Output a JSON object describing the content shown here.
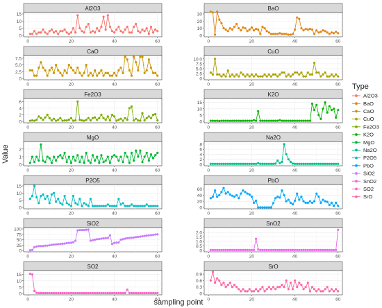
{
  "chart_data": {
    "type": "line",
    "xlabel": "sampling point",
    "ylabel": "Value",
    "legend": {
      "title": "Type",
      "position": "right"
    },
    "grid": true,
    "x": [
      1,
      2,
      3,
      4,
      5,
      6,
      7,
      8,
      9,
      10,
      11,
      12,
      13,
      14,
      15,
      16,
      17,
      18,
      19,
      20,
      21,
      22,
      23,
      24,
      25,
      26,
      27,
      28,
      29,
      30,
      31,
      32,
      33,
      34,
      35,
      36,
      37,
      38,
      39,
      40,
      41,
      42,
      43,
      44,
      45,
      46,
      47,
      48,
      49,
      50,
      51,
      52,
      53,
      54,
      55,
      56,
      57,
      58,
      59,
      60
    ],
    "xlim": [
      -2,
      62
    ],
    "xticks": [
      0,
      20,
      40,
      60
    ],
    "panels": [
      {
        "name": "Al2O3",
        "color": "#F8766D",
        "ylim": [
          0,
          15
        ],
        "yticks": [
          0,
          5,
          10,
          15
        ],
        "ytick_labels": [
          "0",
          "5",
          "10",
          "15"
        ],
        "values": [
          1,
          1,
          3,
          1,
          2,
          2,
          4,
          2,
          1,
          3,
          4,
          2,
          3,
          1,
          3,
          3,
          4,
          2,
          1,
          2,
          5,
          2,
          14,
          5,
          3,
          2,
          6,
          8,
          2,
          3,
          2,
          5,
          3,
          6,
          13,
          4,
          14,
          6,
          3,
          2,
          4,
          6,
          3,
          2,
          4,
          6,
          2,
          2,
          6,
          8,
          3,
          2,
          4,
          3,
          5,
          1,
          6,
          2,
          4,
          3
        ]
      },
      {
        "name": "BaO",
        "color": "#E68613",
        "ylim": [
          0,
          30
        ],
        "yticks": [
          0,
          10,
          20,
          30
        ],
        "ytick_labels": [
          "0",
          "10",
          "20",
          "30"
        ],
        "values": [
          33,
          32,
          1,
          33,
          22,
          17,
          10,
          8,
          6,
          10,
          8,
          12,
          16,
          10,
          7,
          11,
          10,
          6,
          8,
          11,
          7,
          9,
          8,
          2,
          12,
          10,
          6,
          4,
          2,
          2,
          2,
          2,
          3,
          2,
          2,
          2,
          1,
          1,
          2,
          8,
          25,
          23,
          10,
          7,
          9,
          8,
          9,
          8,
          2,
          7,
          4,
          5,
          7,
          6,
          4,
          2,
          4,
          3,
          5,
          3
        ]
      },
      {
        "name": "CaO",
        "color": "#CD9600",
        "ylim": [
          0,
          8
        ],
        "yticks": [
          0,
          2.5,
          5,
          7.5
        ],
        "ytick_labels": [
          "0",
          "2.5",
          "5.0",
          "7.5"
        ],
        "values": [
          3,
          3,
          1,
          1,
          4,
          6,
          4,
          3,
          1,
          3,
          4,
          2,
          5,
          3,
          2,
          1,
          3,
          2,
          5,
          4,
          3,
          2,
          4,
          2,
          1,
          2,
          5,
          1,
          2,
          1,
          3,
          1,
          2,
          3,
          1,
          2,
          2,
          1,
          1,
          2,
          1,
          3,
          4,
          2,
          8,
          7,
          3,
          1,
          8,
          6,
          3,
          8,
          8,
          2,
          3,
          7,
          4,
          2,
          2,
          1
        ]
      },
      {
        "name": "CuO",
        "color": "#ABA300",
        "ylim": [
          0,
          11
        ],
        "yticks": [
          0,
          2.5,
          5,
          7.5,
          10
        ],
        "ytick_labels": [
          "0",
          "2.5",
          "5.0",
          "7.5",
          "10.0"
        ],
        "values": [
          3,
          2,
          10,
          2,
          2,
          1,
          2,
          1,
          4,
          1,
          2,
          1,
          2,
          1,
          3,
          2,
          1,
          2,
          1,
          2,
          1,
          2,
          1,
          1,
          1,
          2,
          1,
          2,
          1,
          2,
          2,
          1,
          2,
          3,
          3,
          1,
          2,
          1,
          2,
          3,
          3,
          2,
          3,
          1,
          1,
          3,
          2,
          2,
          8,
          3,
          3,
          1,
          2,
          3,
          1,
          1,
          2,
          1,
          2,
          1
        ]
      },
      {
        "name": "Fe2O3",
        "color": "#7CAE00",
        "ylim": [
          0,
          6.5
        ],
        "yticks": [
          0,
          2,
          4,
          6
        ],
        "ytick_labels": [
          "0",
          "2",
          "4",
          "6"
        ],
        "values": [
          0.2,
          0.3,
          0.2,
          0.5,
          1.5,
          1,
          0.5,
          1.2,
          2,
          1,
          0.3,
          0.8,
          0.2,
          0.5,
          1,
          0.2,
          0.3,
          0.3,
          0.5,
          1,
          0.2,
          0.3,
          6,
          0.5,
          0.3,
          0.2,
          0.5,
          1,
          0.3,
          1,
          1.2,
          0.5,
          1,
          2,
          1,
          0.5,
          1.5,
          0.3,
          2,
          1.5,
          0.2,
          0.5,
          0.8,
          0.2,
          1,
          0.5,
          4,
          4.5,
          0.3,
          0.8,
          0.3,
          0.2,
          2.5,
          0.3,
          1,
          1.5,
          1,
          2,
          2.2,
          0.3
        ]
      },
      {
        "name": "K2O",
        "color": "#0CB702",
        "ylim": [
          0,
          17
        ],
        "yticks": [
          0,
          5,
          10,
          15
        ],
        "ytick_labels": [
          "0",
          "5",
          "10",
          "15"
        ],
        "values": [
          0.5,
          0.5,
          0.4,
          0.5,
          0.3,
          0.5,
          0.5,
          0.5,
          0.5,
          0.4,
          0.5,
          0.5,
          0.5,
          0.5,
          0.4,
          0.5,
          0.5,
          0.5,
          0.5,
          0.5,
          1,
          0.5,
          8,
          0.5,
          0.5,
          0.5,
          0.5,
          0.5,
          0.5,
          0.5,
          0.5,
          0.5,
          1,
          0.5,
          0.5,
          0.5,
          0.5,
          0.5,
          0.5,
          0.5,
          0.5,
          0.5,
          0.5,
          0.5,
          0.5,
          0.5,
          0.5,
          14,
          9,
          13,
          5,
          2,
          10,
          15,
          7,
          12,
          9,
          10,
          3,
          9
        ]
      },
      {
        "name": "MgO",
        "color": "#00BA38",
        "ylim": [
          0,
          2.8
        ],
        "yticks": [
          0,
          1,
          2
        ],
        "ytick_labels": [
          "0",
          "1",
          "2"
        ],
        "values": [
          0.2,
          1,
          0.3,
          1,
          0.5,
          2.6,
          0.5,
          0.3,
          1,
          0.8,
          0.2,
          1,
          0.5,
          1,
          1.2,
          0.8,
          1.5,
          0.3,
          1,
          0.2,
          1,
          0.5,
          1.2,
          0.3,
          1,
          0.2,
          1.5,
          0.5,
          0.2,
          1.2,
          0.5,
          1,
          0.2,
          1.2,
          0.3,
          0.5,
          1,
          0.2,
          1,
          1.2,
          1,
          0.5,
          1,
          0.3,
          1.5,
          1,
          0.2,
          1.5,
          0.5,
          1.8,
          1,
          1.8,
          0.3,
          1,
          1.5,
          0.5,
          1.3,
          0.8,
          1.2,
          1.5
        ]
      },
      {
        "name": "Na2O",
        "color": "#00C08B",
        "ylim": [
          0,
          8.5
        ],
        "yticks": [
          0,
          2,
          4,
          6,
          8
        ],
        "ytick_labels": [
          "0",
          "2",
          "4",
          "6",
          "8"
        ],
        "values": [
          0.2,
          0.2,
          0.2,
          0.2,
          0.2,
          0.2,
          0.2,
          0.2,
          0.2,
          0.2,
          0.2,
          0.2,
          0.2,
          0.2,
          0.2,
          0.2,
          0.2,
          0.2,
          0.2,
          0.2,
          0.2,
          0.2,
          0.5,
          0.2,
          0.2,
          0.2,
          0.2,
          0.2,
          0.2,
          0.2,
          0.3,
          1.5,
          0.5,
          1,
          8,
          4,
          2,
          1,
          0.3,
          0.2,
          0.2,
          0.2,
          0.2,
          0.2,
          0.2,
          0.2,
          0.2,
          0.2,
          0.2,
          0.2,
          0.2,
          0.2,
          0.2,
          0.2,
          0.2,
          0.2,
          0.2,
          0.2,
          0.2,
          0.2
        ]
      },
      {
        "name": "P2O5",
        "color": "#00BFC4",
        "ylim": [
          0,
          15
        ],
        "yticks": [
          0,
          5,
          10,
          15
        ],
        "ytick_labels": [
          "0",
          "5",
          "10",
          "15"
        ],
        "values": [
          6,
          8,
          15,
          7,
          3,
          8,
          9,
          6,
          8,
          3,
          9,
          10,
          4,
          6,
          3,
          2,
          8,
          3,
          2,
          1,
          8,
          3,
          2,
          6,
          1,
          3,
          2,
          1,
          6,
          1,
          1,
          1,
          1,
          1,
          1,
          1,
          2,
          1,
          1,
          1,
          1,
          6,
          2,
          3,
          1,
          1,
          1,
          2,
          1,
          1,
          1,
          1,
          1,
          1,
          2,
          1,
          1,
          1,
          1,
          1
        ]
      },
      {
        "name": "PbO",
        "color": "#00A9FF",
        "ylim": [
          0,
          70
        ],
        "yticks": [
          0,
          20,
          40,
          60
        ],
        "ytick_labels": [
          "0",
          "20",
          "40",
          "60"
        ],
        "values": [
          30,
          35,
          55,
          35,
          40,
          50,
          63,
          45,
          50,
          42,
          38,
          35,
          40,
          30,
          45,
          55,
          50,
          45,
          42,
          35,
          15,
          22,
          0,
          0,
          0,
          0,
          0,
          0,
          0,
          14,
          30,
          35,
          32,
          55,
          40,
          20,
          25,
          15,
          10,
          22,
          45,
          25,
          35,
          20,
          15,
          15,
          20,
          15,
          20,
          45,
          35,
          15,
          25,
          20,
          18,
          8,
          15,
          5,
          15,
          5
        ]
      },
      {
        "name": "SiO2",
        "color": "#C77CFF",
        "ylim": [
          0,
          100
        ],
        "yticks": [
          0,
          25,
          50,
          75,
          100
        ],
        "ytick_labels": [
          "0",
          "25",
          "50",
          "75",
          "100"
        ],
        "values": [
          1,
          2,
          15,
          18,
          20,
          20,
          20,
          22,
          22,
          24,
          26,
          27,
          28,
          29,
          30,
          31,
          32,
          34,
          35,
          36,
          38,
          45,
          93,
          95,
          95,
          95,
          96,
          97,
          45,
          48,
          50,
          52,
          53,
          55,
          56,
          57,
          58,
          70,
          30,
          35,
          36,
          37,
          50,
          52,
          55,
          57,
          58,
          59,
          60,
          62,
          63,
          64,
          66,
          67,
          69,
          70,
          71,
          72,
          74,
          75
        ]
      },
      {
        "name": "SnO2",
        "color": "#ED68ED",
        "ylim": [
          0,
          2.4
        ],
        "yticks": [
          0,
          0.5,
          1,
          1.5,
          2
        ],
        "ytick_labels": [
          "0",
          "0.5",
          "1.0",
          "1.5",
          "2.0"
        ],
        "values": [
          0.05,
          0.05,
          0.05,
          0.05,
          0.05,
          0.05,
          0.05,
          0.05,
          0.05,
          0.05,
          0.05,
          0.05,
          0.05,
          0.05,
          0.05,
          0.05,
          0.05,
          0.05,
          0.05,
          0.05,
          0.05,
          1.3,
          0.1,
          0.05,
          0.05,
          0.05,
          0.05,
          0.05,
          0.05,
          0.05,
          0.05,
          0.05,
          0.05,
          0.05,
          0.05,
          0.05,
          0.05,
          0.05,
          0.05,
          0.05,
          0.05,
          0.05,
          0.05,
          0.05,
          0.05,
          0.05,
          0.05,
          0.05,
          0.05,
          0.05,
          0.05,
          0.05,
          0.05,
          0.05,
          0.05,
          0.05,
          0.05,
          0.05,
          0.05,
          2.3
        ]
      },
      {
        "name": "SO2",
        "color": "#FF61CC",
        "ylim": [
          0,
          17
        ],
        "yticks": [
          0,
          5,
          10,
          15
        ],
        "ytick_labels": [
          "0",
          "5",
          "10",
          "15"
        ],
        "values": [
          15.5,
          15,
          2,
          0.5,
          0.3,
          0.3,
          0.3,
          0.3,
          0.3,
          0.3,
          0.3,
          0.3,
          0.3,
          0.3,
          0.3,
          0.3,
          0.3,
          0.3,
          0.3,
          0.3,
          0.3,
          0.3,
          0.3,
          0.3,
          0.3,
          0.3,
          0.3,
          0.3,
          0.3,
          0.3,
          0.3,
          0.3,
          0.3,
          0.3,
          0.3,
          0.3,
          0.3,
          0.3,
          0.3,
          0.3,
          0.3,
          0.3,
          0.3,
          0.3,
          0.3,
          3,
          0.3,
          0.3,
          0.3,
          0.3,
          0.3,
          0.3,
          0.3,
          0.3,
          0.3,
          0.3,
          0.3,
          0.3,
          0.3,
          0.3
        ]
      },
      {
        "name": "SrO",
        "color": "#FF68A1",
        "ylim": [
          0,
          1.0
        ],
        "yticks": [
          0,
          0.3,
          0.6,
          0.9
        ],
        "ytick_labels": [
          "0",
          "0.3",
          "0.6",
          "0.9"
        ],
        "values": [
          0.6,
          1.0,
          0.5,
          0.7,
          0.6,
          0.4,
          0.5,
          0.3,
          0.4,
          0.5,
          0.3,
          0.4,
          0.3,
          0.2,
          0.1,
          0.2,
          0.1,
          0.1,
          0.2,
          0.1,
          0.1,
          0.2,
          0.1,
          0.2,
          0.3,
          0.1,
          0.2,
          0.3,
          0.2,
          0.3,
          0.2,
          0.3,
          0.3,
          0.4,
          0.3,
          0.6,
          0.2,
          0.5,
          0.2,
          0.6,
          0.3,
          0.5,
          0.4,
          0.2,
          0.3,
          0.5,
          0.1,
          0.3,
          0.2,
          0.1,
          0.2,
          0.1,
          0.1,
          0.2,
          0.3,
          0.1,
          0.2,
          0.1,
          0.2,
          0.1
        ]
      }
    ]
  }
}
